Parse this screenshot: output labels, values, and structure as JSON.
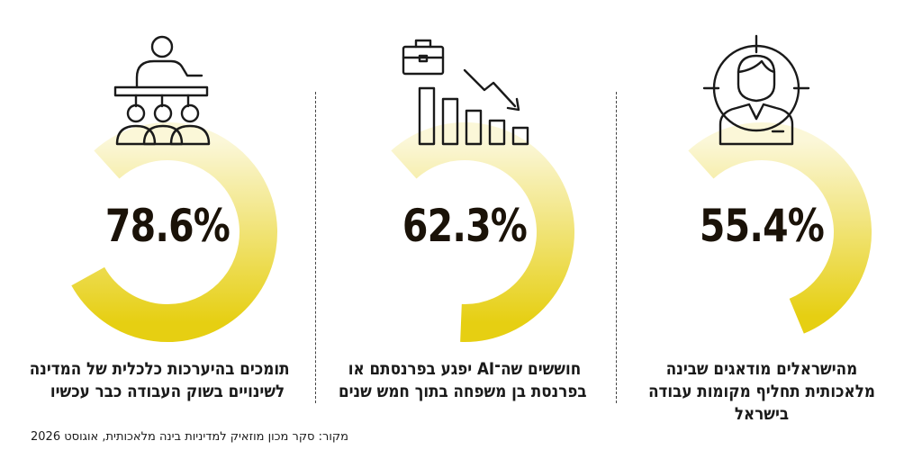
{
  "chart_data": [
    {
      "type": "pie",
      "values": [
        55.4
      ],
      "value_label": "55.4%",
      "caption_lines": [
        "מהישראלים מודאגים שבינה",
        "מלאכותית תחליף מקומות עבודה",
        "בישראל"
      ],
      "icon": "businessman-target-icon"
    },
    {
      "type": "pie",
      "values": [
        62.3
      ],
      "value_label": "62.3%",
      "caption_lines": [
        "חוששים שה־AI יפגע בפרנסתם או",
        "בפרנסת בן משפחה בתוך חמש שנים"
      ],
      "icon": "briefcase-declining-bars-icon"
    },
    {
      "type": "pie",
      "values": [
        78.6
      ],
      "value_label": "78.6%",
      "caption_lines": [
        "תומכים בהיערכות כלכלית של המדינה",
        "לשינויים בשוק העבודה כבר עכשיו"
      ],
      "icon": "lecturer-audience-icon"
    }
  ],
  "source": "מקור: סקר מכון מוזאיק למדיניות בינה מלאכותית, אוגוסט 2026",
  "colors": {
    "ring_start": "#fbf7d8",
    "ring_end": "#e6cf12",
    "text": "#1a1208"
  }
}
